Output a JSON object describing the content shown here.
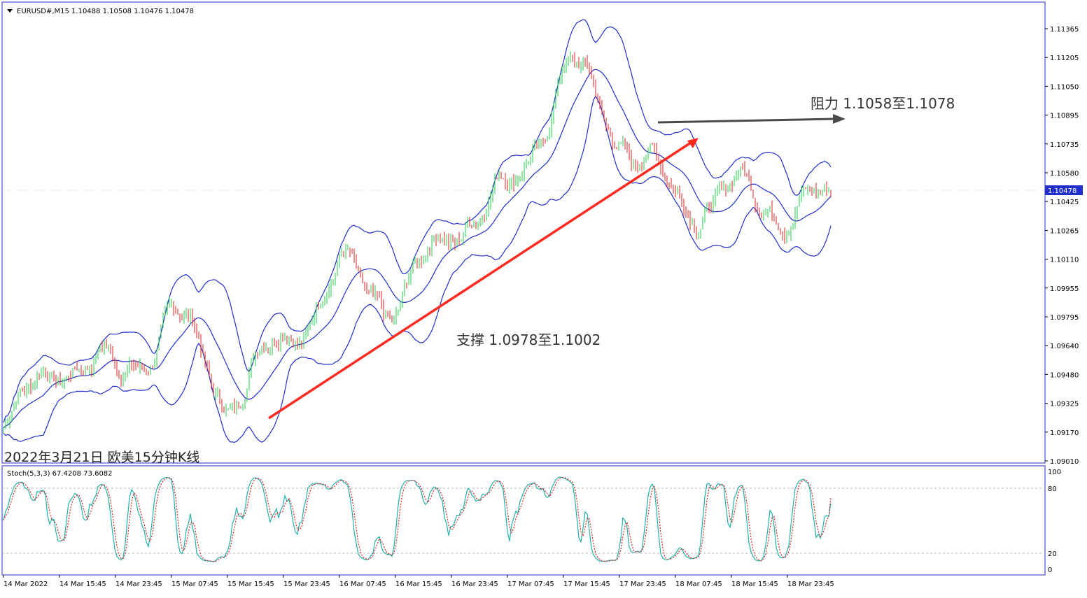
{
  "header": {
    "symbol_line": "EURUSD#,M15  1.10488 1.10508 1.10476 1.10478"
  },
  "caption": "2022年3月21日 欧美15分钟K线",
  "annotations": {
    "resistance": "阻力 1.1058至1.1078",
    "support": "支撑 1.0978至1.1002"
  },
  "price_axis": {
    "ticks": [
      "1.11365",
      "1.11205",
      "1.11050",
      "1.10895",
      "1.10735",
      "1.10580",
      "1.10425",
      "1.10265",
      "1.10110",
      "1.09955",
      "1.09795",
      "1.09640",
      "1.09480",
      "1.09325",
      "1.09170",
      "1.09010"
    ],
    "current_price": "1.10478"
  },
  "stoch": {
    "label": "Stoch(5,3,3) 67.4208 73.6082",
    "ticks": [
      "100",
      "80",
      "20",
      "0"
    ]
  },
  "time_axis": {
    "labels": [
      "14 Mar 2022",
      "14 Mar 15:45",
      "14 Mar 23:45",
      "15 Mar 07:45",
      "15 Mar 15:45",
      "15 Mar 23:45",
      "16 Mar 07:45",
      "16 Mar 15:45",
      "16 Mar 23:45",
      "17 Mar 07:45",
      "17 Mar 15:45",
      "17 Mar 23:45",
      "18 Mar 07:45",
      "18 Mar 15:45",
      "18 Mar 23:45"
    ]
  },
  "colors": {
    "bull": "#22cc44",
    "bear": "#dd2222",
    "bands": "#1f2ecc",
    "support_arrow": "#ff2a1f",
    "resistance_arrow": "#4a4a4a",
    "stoch_main": "#20b2aa",
    "stoch_signal": "#dd2222"
  },
  "chart_data": {
    "type": "candlestick",
    "symbol": "EURUSD#",
    "timeframe": "M15",
    "last_ohlc": {
      "open": 1.10488,
      "high": 1.10508,
      "low": 1.10476,
      "close": 1.10478
    },
    "ylim": [
      1.0901,
      1.115
    ],
    "close_path": [
      {
        "x": "14 Mar 2022",
        "y": 1.092
      },
      {
        "x": "14 Mar 15:45",
        "y": 1.0962
      },
      {
        "x": "14 Mar 23:45",
        "y": 1.095
      },
      {
        "x": "15 Mar 07:45",
        "y": 1.0985
      },
      {
        "x": "15 Mar 15:45",
        "y": 1.0935
      },
      {
        "x": "15 Mar 23:45",
        "y": 1.0975
      },
      {
        "x": "16 Mar 07:45",
        "y": 1.101
      },
      {
        "x": "16 Mar 15:45",
        "y": 1.099
      },
      {
        "x": "16 Mar 23:45",
        "y": 1.104
      },
      {
        "x": "17 Mar 07:45",
        "y": 1.1055
      },
      {
        "x": "17 Mar 15:45",
        "y": 1.113
      },
      {
        "x": "17 Mar 23:45",
        "y": 1.1088
      },
      {
        "x": "18 Mar 07:45",
        "y": 1.105
      },
      {
        "x": "18 Mar 15:45",
        "y": 1.1055
      },
      {
        "x": "18 Mar 23:45",
        "y": 1.1048
      }
    ],
    "stoch_k": 67.4208,
    "stoch_d": 73.6082,
    "stoch_levels": [
      80,
      20
    ]
  }
}
